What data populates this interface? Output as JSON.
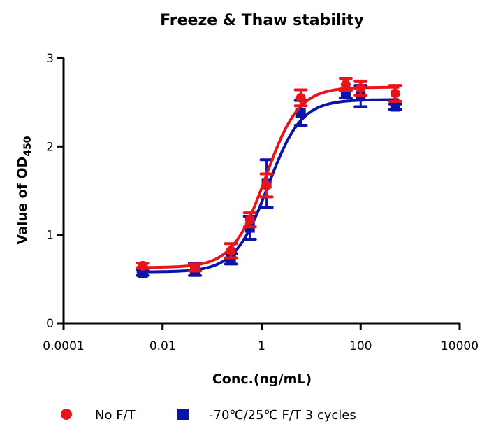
{
  "chart_data": {
    "type": "scatter",
    "title": "Freeze & Thaw stability",
    "xlabel": "Conc.(ng/mL)",
    "ylabel": "Value of OD",
    "ylabel_subscript": "450",
    "xscale": "log",
    "xlim": [
      0.0001,
      10000
    ],
    "ylim": [
      0,
      3
    ],
    "xticks": [
      "0.0001",
      "0.01",
      "1",
      "100",
      "10000"
    ],
    "yticks": [
      "0",
      "1",
      "2",
      "3"
    ],
    "grid": false,
    "legend_position": "bottom",
    "fit": "four-parameter logistic curve",
    "series": [
      {
        "name": "No F/T",
        "color": "#e8141c",
        "marker": "circle",
        "x": [
          0.004,
          0.045,
          0.24,
          0.58,
          1.26,
          6.2,
          50,
          100,
          500
        ],
        "y": [
          0.65,
          0.63,
          0.82,
          1.17,
          1.56,
          2.55,
          2.7,
          2.66,
          2.6
        ],
        "error": [
          0.03,
          0.04,
          0.08,
          0.08,
          0.13,
          0.09,
          0.07,
          0.08,
          0.09
        ],
        "fit_params": {
          "bottom": 0.63,
          "top": 2.67,
          "ec50": 1.2,
          "hill": 1.3
        }
      },
      {
        "name": "-70℃/25℃ F/T 3 cycles",
        "color": "#0a14a8",
        "marker": "square",
        "x": [
          0.004,
          0.045,
          0.24,
          0.58,
          1.26,
          6.2,
          50,
          100,
          500
        ],
        "y": [
          0.57,
          0.61,
          0.73,
          1.08,
          1.58,
          2.38,
          2.6,
          2.57,
          2.45
        ],
        "error": [
          0.03,
          0.07,
          0.06,
          0.13,
          0.27,
          0.14,
          0.05,
          0.12,
          0.03
        ],
        "fit_params": {
          "bottom": 0.58,
          "top": 2.53,
          "ec50": 1.35,
          "hill": 1.3
        }
      }
    ]
  }
}
